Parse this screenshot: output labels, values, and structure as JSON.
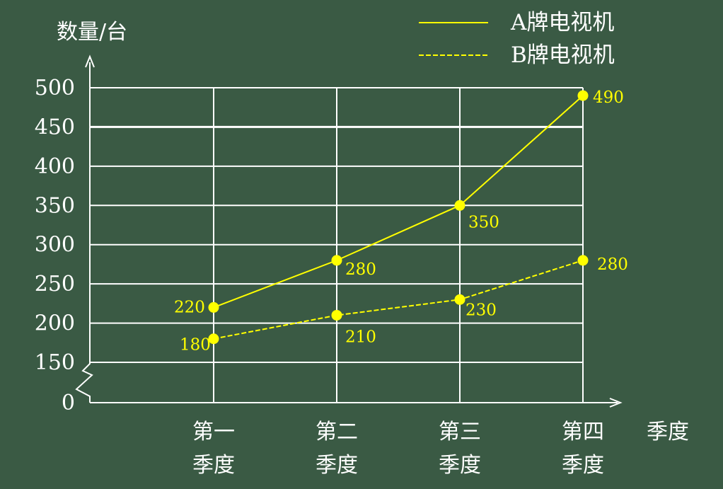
{
  "chart_data": {
    "type": "line",
    "ylabel": "数量/台",
    "xlabel": "季度",
    "categories": [
      [
        "第一",
        "季度"
      ],
      [
        "第二",
        "季度"
      ],
      [
        "第三",
        "季度"
      ],
      [
        "第四",
        "季度"
      ]
    ],
    "ylim": [
      150,
      500
    ],
    "yticks": [
      0,
      150,
      200,
      250,
      300,
      350,
      400,
      450,
      500
    ],
    "axis_break": true,
    "grid": true,
    "legend_position": "top-right",
    "series": [
      {
        "name": "A牌电视机",
        "values": [
          220,
          280,
          350,
          490
        ],
        "style": "solid",
        "color": "#ffff00"
      },
      {
        "name": "B牌电视机",
        "values": [
          180,
          210,
          230,
          280
        ],
        "style": "dashed",
        "color": "#ffff00"
      }
    ]
  },
  "colors": {
    "background": "#3a5a44",
    "axis": "#ffffff",
    "series": "#ffff00"
  }
}
